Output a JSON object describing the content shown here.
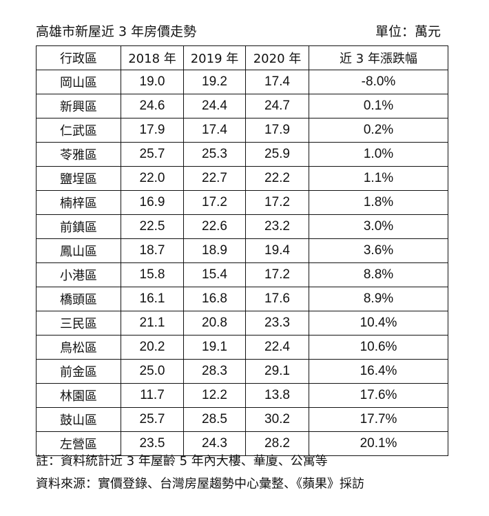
{
  "header": {
    "title": "高雄市新屋近 3 年房價走勢",
    "unit": "單位：萬元"
  },
  "table": {
    "columns": [
      "行政區",
      "2018 年",
      "2019 年",
      "2020 年",
      "近 3 年漲跌幅"
    ],
    "rows": [
      [
        "岡山區",
        "19.0",
        "19.2",
        "17.4",
        "-8.0%"
      ],
      [
        "新興區",
        "24.6",
        "24.4",
        "24.7",
        "0.1%"
      ],
      [
        "仁武區",
        "17.9",
        "17.4",
        "17.9",
        "0.2%"
      ],
      [
        "苓雅區",
        "25.7",
        "25.3",
        "25.9",
        "1.0%"
      ],
      [
        "鹽埕區",
        "22.0",
        "22.7",
        "22.2",
        "1.1%"
      ],
      [
        "楠梓區",
        "16.9",
        "17.2",
        "17.2",
        "1.8%"
      ],
      [
        "前鎮區",
        "22.5",
        "22.6",
        "23.2",
        "3.0%"
      ],
      [
        "鳳山區",
        "18.7",
        "18.9",
        "19.4",
        "3.6%"
      ],
      [
        "小港區",
        "15.8",
        "15.4",
        "17.2",
        "8.8%"
      ],
      [
        "橋頭區",
        "16.1",
        "16.8",
        "17.6",
        "8.9%"
      ],
      [
        "三民區",
        "21.1",
        "20.8",
        "23.3",
        "10.4%"
      ],
      [
        "鳥松區",
        "20.2",
        "19.1",
        "22.4",
        "10.6%"
      ],
      [
        "前金區",
        "25.0",
        "28.3",
        "29.1",
        "16.4%"
      ],
      [
        "林園區",
        "11.7",
        "12.2",
        "13.8",
        "17.6%"
      ],
      [
        "鼓山區",
        "25.7",
        "28.5",
        "30.2",
        "17.7%"
      ],
      [
        "左營區",
        "23.5",
        "24.3",
        "28.2",
        "20.1%"
      ]
    ]
  },
  "notes": {
    "note": "註：資料統計近 3 年屋齡 5 年內大樓、華廈、公寓等",
    "source": "資料來源：實價登錄、台灣房屋趨勢中心彙整、《蘋果》採訪"
  }
}
